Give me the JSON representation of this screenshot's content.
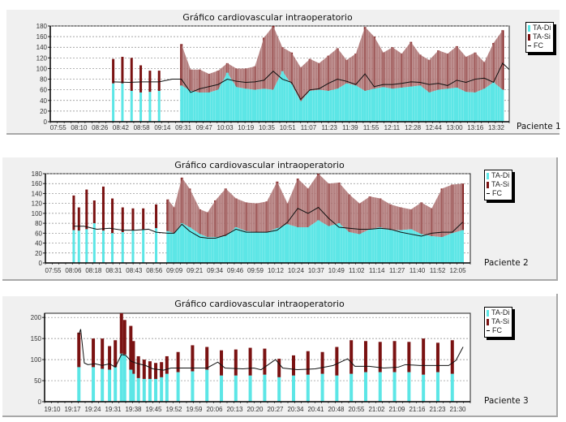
{
  "colors": {
    "diastolic": "#5ce6e6",
    "systolic": "#7a1212",
    "systolic_fill": "#a86b6b",
    "fc": "#111111",
    "grid": "#888888"
  },
  "chart_data": [
    {
      "type": "bar",
      "title": "Gráfico cardiovascular intraoperatorio",
      "patient_label": "Paciente 1",
      "legend": [
        "TA-Di",
        "TA-Si",
        "FC"
      ],
      "legend_placement": "right",
      "ylim": [
        0,
        180
      ],
      "yticks": [
        0,
        20,
        40,
        60,
        80,
        100,
        120,
        140,
        160,
        180
      ],
      "xticks": [
        "07:55",
        "08:10",
        "08:26",
        "08:42",
        "08:58",
        "09:14",
        "09:31",
        "09:47",
        "10:03",
        "10:19",
        "10:35",
        "10:51",
        "11:07",
        "11:23",
        "11:39",
        "11:55",
        "12:11",
        "12:28",
        "12:44",
        "13:00",
        "13:16",
        "13:32"
      ],
      "x_range_min": [
        0,
        350
      ],
      "grid": true,
      "series": [
        {
          "name": "TA-Di",
          "kind": "bar",
          "x": [
            48,
            55,
            62,
            69,
            76,
            83,
            100,
            107,
            114,
            121,
            128,
            135,
            142,
            149,
            156,
            163,
            170,
            177,
            184,
            191,
            198,
            205,
            212,
            219,
            226,
            233,
            240,
            247,
            254,
            261,
            268,
            275,
            282,
            289,
            296,
            303,
            310,
            317,
            324,
            331,
            338,
            345
          ],
          "values": [
            72,
            72,
            58,
            55,
            56,
            58,
            68,
            58,
            55,
            55,
            60,
            92,
            65,
            62,
            60,
            62,
            60,
            95,
            70,
            38,
            58,
            60,
            58,
            62,
            72,
            68,
            58,
            62,
            65,
            62,
            64,
            66,
            68,
            55,
            60,
            62,
            64,
            56,
            55,
            62,
            74,
            60
          ]
        },
        {
          "name": "TA-Si",
          "kind": "bar",
          "x": [
            48,
            55,
            62,
            69,
            76,
            83,
            100,
            107,
            114,
            121,
            128,
            135,
            142,
            149,
            156,
            163,
            170,
            177,
            184,
            191,
            198,
            205,
            212,
            219,
            226,
            233,
            240,
            247,
            254,
            261,
            268,
            275,
            282,
            289,
            296,
            303,
            310,
            317,
            324,
            331,
            338,
            345
          ],
          "values": [
            118,
            122,
            120,
            106,
            96,
            96,
            146,
            98,
            98,
            90,
            96,
            110,
            100,
            100,
            104,
            158,
            180,
            140,
            130,
            102,
            118,
            110,
            124,
            138,
            116,
            128,
            178,
            160,
            130,
            140,
            128,
            150,
            126,
            116,
            134,
            128,
            142,
            122,
            130,
            112,
            148,
            172
          ]
        },
        {
          "name": "FC",
          "kind": "line",
          "x": [
            48,
            60,
            70,
            83,
            93,
            100,
            107,
            114,
            121,
            128,
            135,
            142,
            149,
            156,
            163,
            170,
            177,
            184,
            191,
            198,
            205,
            212,
            219,
            226,
            233,
            240,
            247,
            254,
            261,
            268,
            275,
            282,
            289,
            296,
            303,
            310,
            317,
            324,
            331,
            338,
            345,
            350
          ],
          "values": [
            75,
            74,
            75,
            75,
            80,
            80,
            55,
            62,
            66,
            70,
            80,
            76,
            74,
            75,
            78,
            95,
            80,
            74,
            42,
            60,
            62,
            72,
            80,
            76,
            70,
            90,
            66,
            70,
            70,
            72,
            75,
            74,
            70,
            72,
            68,
            78,
            74,
            80,
            82,
            74,
            110,
            98
          ]
        }
      ]
    },
    {
      "type": "bar",
      "title": "Gráfico cardiovascular intraoperatorio",
      "patient_label": "Paciente 2",
      "legend": [
        "TA-Di",
        "TA-Si",
        "FC"
      ],
      "legend_placement": "right",
      "ylim": [
        0,
        180
      ],
      "yticks": [
        0,
        20,
        40,
        60,
        80,
        100,
        120,
        140,
        160,
        180
      ],
      "xticks": [
        "07:55",
        "08:06",
        "08:18",
        "08:31",
        "08:43",
        "08:56",
        "09:09",
        "09:21",
        "09:34",
        "09:46",
        "09:59",
        "10:12",
        "10:24",
        "10:37",
        "10:49",
        "11:02",
        "11:14",
        "11:27",
        "11:40",
        "11:52",
        "12:05"
      ],
      "grid": true,
      "series": [
        {
          "name": "TA-Di",
          "kind": "bar",
          "x": [
            22,
            26,
            32,
            38,
            45,
            52,
            60,
            68,
            76,
            86,
            95,
            100,
            106,
            112,
            120,
            126,
            132,
            140,
            148,
            156,
            164,
            172,
            180,
            188,
            196,
            204,
            212,
            220,
            228,
            236,
            244,
            252,
            260,
            268,
            276,
            284,
            292,
            300,
            308,
            316,
            324
          ],
          "values": [
            66,
            65,
            68,
            80,
            65,
            60,
            62,
            65,
            68,
            70,
            64,
            60,
            80,
            72,
            58,
            52,
            52,
            54,
            72,
            64,
            62,
            62,
            70,
            78,
            72,
            72,
            86,
            74,
            80,
            62,
            58,
            68,
            72,
            66,
            66,
            68,
            58,
            54,
            52,
            60,
            66
          ]
        },
        {
          "name": "TA-Si",
          "kind": "bar",
          "x": [
            22,
            26,
            32,
            38,
            45,
            52,
            60,
            68,
            76,
            86,
            95,
            100,
            106,
            112,
            120,
            126,
            132,
            140,
            148,
            156,
            164,
            172,
            180,
            188,
            196,
            204,
            212,
            220,
            228,
            236,
            244,
            252,
            260,
            268,
            276,
            284,
            292,
            300,
            308,
            316,
            324
          ],
          "values": [
            136,
            112,
            148,
            126,
            154,
            130,
            112,
            110,
            110,
            118,
            128,
            112,
            172,
            150,
            108,
            102,
            126,
            150,
            130,
            122,
            120,
            124,
            164,
            120,
            170,
            150,
            180,
            160,
            162,
            138,
            120,
            134,
            130,
            118,
            112,
            108,
            122,
            110,
            150,
            158,
            160
          ]
        },
        {
          "name": "FC",
          "kind": "line",
          "x": [
            22,
            30,
            40,
            50,
            60,
            70,
            80,
            86,
            95,
            100,
            106,
            112,
            120,
            126,
            132,
            140,
            148,
            156,
            164,
            172,
            180,
            188,
            196,
            204,
            212,
            220,
            228,
            236,
            244,
            252,
            260,
            268,
            276,
            284,
            292,
            300,
            308,
            316,
            324
          ],
          "values": [
            74,
            74,
            68,
            70,
            66,
            66,
            68,
            62,
            60,
            60,
            78,
            64,
            52,
            50,
            50,
            56,
            68,
            62,
            62,
            62,
            66,
            82,
            110,
            100,
            112,
            90,
            72,
            70,
            68,
            68,
            70,
            68,
            62,
            58,
            54,
            60,
            62,
            62,
            82
          ]
        }
      ]
    },
    {
      "type": "bar",
      "title": "Gráfico cardiovascular intraoperatorio",
      "patient_label": "Paciente 3",
      "legend": [
        "TA-Di",
        "TA-Si",
        "FC"
      ],
      "legend_placement": "right",
      "ylim": [
        0,
        210
      ],
      "yticks": [
        0,
        50,
        100,
        150,
        200
      ],
      "xticks": [
        "19:10",
        "19:17",
        "19:24",
        "19:31",
        "19:38",
        "19:45",
        "19:52",
        "19:59",
        "20:06",
        "20:13",
        "20:20",
        "20:27",
        "20:34",
        "20:41",
        "20:48",
        "20:55",
        "21:02",
        "21:09",
        "21:16",
        "21:23",
        "21:30"
      ],
      "grid": true,
      "series": [
        {
          "name": "TA-Di",
          "kind": "bar",
          "x": [
            9.5,
            13.5,
            16,
            18,
            19.6,
            21.3,
            22.2,
            23.9,
            24.6,
            26,
            27.6,
            29.2,
            30.8,
            32.4,
            33.9,
            37,
            41,
            45,
            49,
            53,
            57,
            61,
            65,
            69,
            73,
            77,
            81,
            85,
            89,
            93,
            97,
            101,
            105,
            109,
            113
          ],
          "values": [
            82,
            82,
            78,
            76,
            82,
            114,
            112,
            76,
            66,
            56,
            54,
            54,
            54,
            58,
            66,
            70,
            72,
            76,
            62,
            62,
            62,
            64,
            58,
            62,
            64,
            66,
            62,
            66,
            70,
            70,
            70,
            70,
            64,
            70,
            66
          ]
        },
        {
          "name": "TA-Si",
          "kind": "bar",
          "x": [
            9.5,
            13.5,
            16,
            18,
            19.6,
            21.3,
            22.2,
            23.9,
            24.6,
            26,
            27.6,
            29.2,
            30.8,
            32.4,
            33.9,
            37,
            41,
            45,
            49,
            53,
            57,
            61,
            65,
            69,
            73,
            77,
            81,
            85,
            89,
            93,
            97,
            101,
            105,
            109,
            113
          ],
          "values": [
            164,
            150,
            150,
            132,
            146,
            210,
            194,
            180,
            144,
            108,
            100,
            96,
            92,
            94,
            108,
            118,
            134,
            130,
            122,
            124,
            128,
            126,
            102,
            110,
            120,
            118,
            130,
            146,
            144,
            142,
            144,
            142,
            150,
            140,
            146
          ]
        },
        {
          "name": "FC",
          "kind": "line",
          "x": [
            9.5,
            10,
            11,
            12,
            14,
            16,
            18,
            19.6,
            21.3,
            22.5,
            24,
            26,
            28,
            30,
            33,
            35,
            40,
            45,
            48,
            50,
            55,
            58,
            60,
            64,
            66,
            70,
            75,
            80,
            84,
            86,
            90,
            94,
            98,
            100,
            104,
            108,
            112,
            114,
            116
          ],
          "values": [
            160,
            172,
            92,
            88,
            90,
            86,
            90,
            82,
            112,
            110,
            96,
            90,
            86,
            78,
            75,
            80,
            80,
            80,
            94,
            80,
            78,
            80,
            76,
            100,
            80,
            76,
            78,
            86,
            102,
            84,
            84,
            80,
            82,
            88,
            86,
            86,
            86,
            98,
            130
          ]
        }
      ]
    }
  ]
}
